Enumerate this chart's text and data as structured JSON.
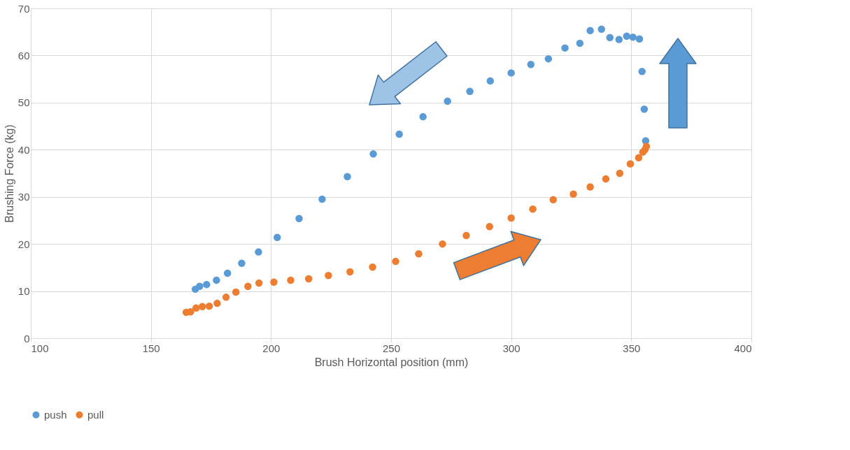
{
  "chart_data": {
    "type": "scatter",
    "xlabel": "Brush Horizontal position (mm)",
    "ylabel": "Brushing Force (kg)",
    "xlim": [
      100,
      400
    ],
    "xticks": [
      100,
      150,
      200,
      250,
      300,
      350,
      400
    ],
    "ylim": [
      0,
      70
    ],
    "yticks": [
      0,
      10,
      20,
      30,
      40,
      50,
      60,
      70
    ],
    "grid": true,
    "legend": "bottom",
    "marker": "circle",
    "series": [
      {
        "name": "push",
        "color": "#5b9bd5",
        "x": [
          168.5,
          170.3,
          173.2,
          177.3,
          181.9,
          187.8,
          194.8,
          202.6,
          211.7,
          221.3,
          231.8,
          242.6,
          253.4,
          263.3,
          273.5,
          282.8,
          291.3,
          300.0,
          308.2,
          315.5,
          322.4,
          328.6,
          332.9,
          337.6,
          341.1,
          344.9,
          348.1,
          350.7,
          353.4,
          354.5,
          355.4,
          356.0
        ],
        "values": [
          10.4,
          11.0,
          11.4,
          12.3,
          13.8,
          15.9,
          18.3,
          21.4,
          25.4,
          29.5,
          34.3,
          39.1,
          43.3,
          47.0,
          50.3,
          52.4,
          54.6,
          56.3,
          58.1,
          59.3,
          61.6,
          62.6,
          65.3,
          65.6,
          63.8,
          63.4,
          64.1,
          63.9,
          63.5,
          56.6,
          48.6,
          41.9
        ]
      },
      {
        "name": "pull",
        "color": "#ed7d31",
        "x": [
          164.7,
          166.5,
          168.8,
          171.4,
          174.3,
          177.6,
          181.3,
          185.4,
          190.4,
          195.0,
          201.2,
          208.2,
          215.7,
          223.9,
          232.9,
          242.3,
          251.9,
          261.5,
          271.4,
          281.3,
          291.0,
          300.0,
          309.0,
          317.5,
          325.9,
          332.9,
          339.4,
          345.2,
          349.6,
          353.1,
          354.8,
          355.7,
          356.3
        ],
        "values": [
          5.5,
          5.6,
          6.4,
          6.7,
          6.8,
          7.4,
          8.7,
          9.8,
          11.0,
          11.7,
          11.9,
          12.3,
          12.6,
          13.3,
          14.1,
          15.1,
          16.3,
          17.9,
          20.0,
          21.8,
          23.7,
          25.5,
          27.4,
          29.4,
          30.6,
          32.1,
          33.8,
          35.0,
          37.0,
          38.3,
          39.5,
          40.0,
          40.7
        ]
      }
    ]
  }
}
